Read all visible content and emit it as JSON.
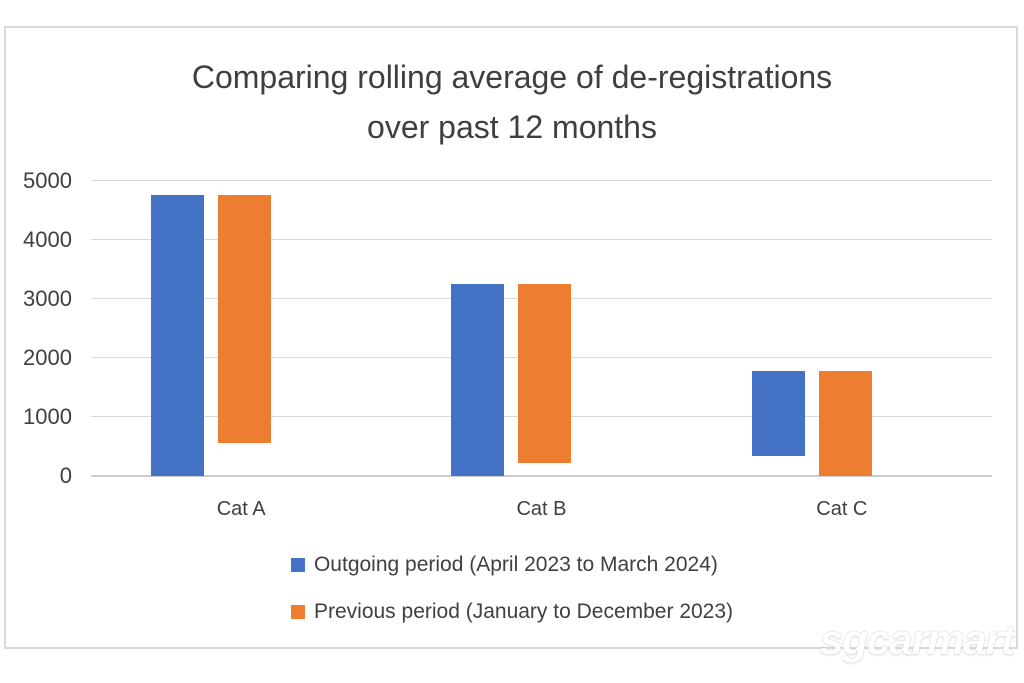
{
  "chart_data": {
    "type": "bar",
    "title": "Comparing rolling average of de-registrations over past 12 months",
    "title_lines": [
      "Comparing rolling average of de-registrations",
      "over past 12 months"
    ],
    "categories": [
      "Cat A",
      "Cat B",
      "Cat C"
    ],
    "series": [
      {
        "name": "Outgoing period (April 2023 to March 2024)",
        "color": "#4472C4",
        "values": [
          4770,
          3260,
          1430
        ]
      },
      {
        "name": "Previous period (January to December 2023)",
        "color": "#ED7D31",
        "values": [
          4210,
          3045,
          1775
        ]
      }
    ],
    "xlabel": "",
    "ylabel": "",
    "ylim": [
      0,
      5000
    ],
    "yticks": [
      0,
      1000,
      2000,
      3000,
      4000,
      5000
    ],
    "grid": true,
    "legend_position": "bottom"
  },
  "watermark": {
    "text": "sgcarmart"
  },
  "colors": {
    "title_text": "#3f3f3f",
    "axis_text": "#3f3f3f",
    "gridline": "#d9d9d9",
    "axis_line": "#cccccc",
    "frame_border": "#d9d9d9",
    "series_blue": "#4472C4",
    "series_orange": "#ED7D31"
  }
}
